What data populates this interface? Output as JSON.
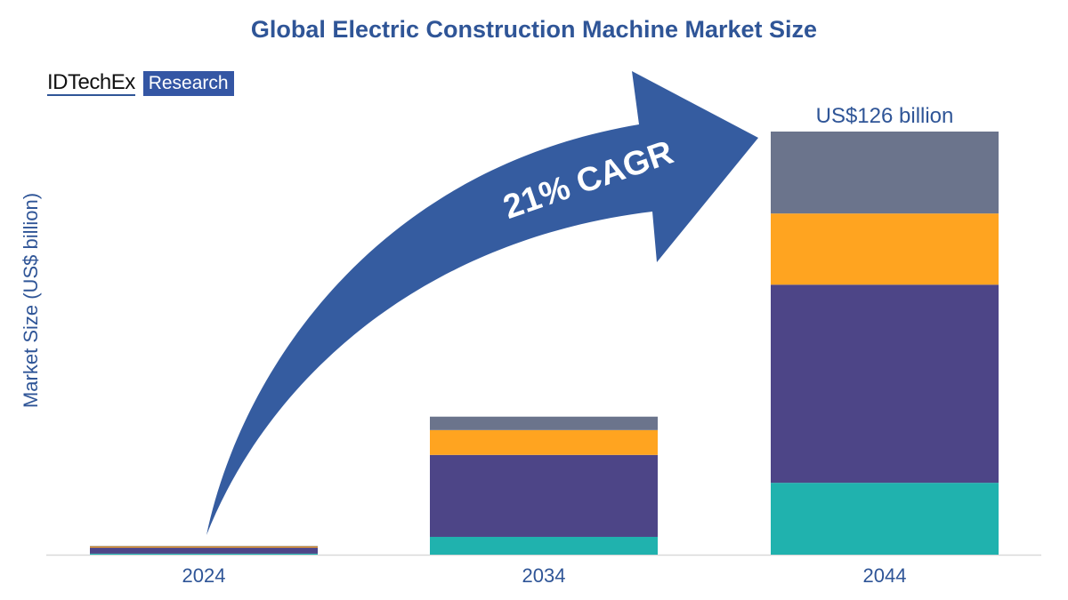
{
  "logo": {
    "name": "IDTechEx",
    "tag": "Research"
  },
  "chart_data": {
    "type": "bar",
    "stacked": true,
    "title": "Global Electric Construction Machine Market Size",
    "ylabel": "Market Size (US$ billion)",
    "xlabel": "",
    "categories": [
      "2024",
      "2034",
      "2044"
    ],
    "ylim": [
      0,
      126
    ],
    "grid": false,
    "series": [
      {
        "color": "#20b2ae",
        "values": [
          0.3,
          5.3,
          21.4
        ]
      },
      {
        "color": "#4d4587",
        "values": [
          1.8,
          24.4,
          59.0
        ]
      },
      {
        "color": "#ffa420",
        "values": [
          0.4,
          7.4,
          21.2
        ]
      },
      {
        "color": "#6b748c",
        "values": [
          0.1,
          4.0,
          24.4
        ]
      }
    ],
    "annotations": {
      "total_label": "US$126 billion",
      "cagr": "21% CAGR"
    }
  },
  "colors": {
    "title": "#2f5597",
    "arrow": "#355ca0"
  }
}
